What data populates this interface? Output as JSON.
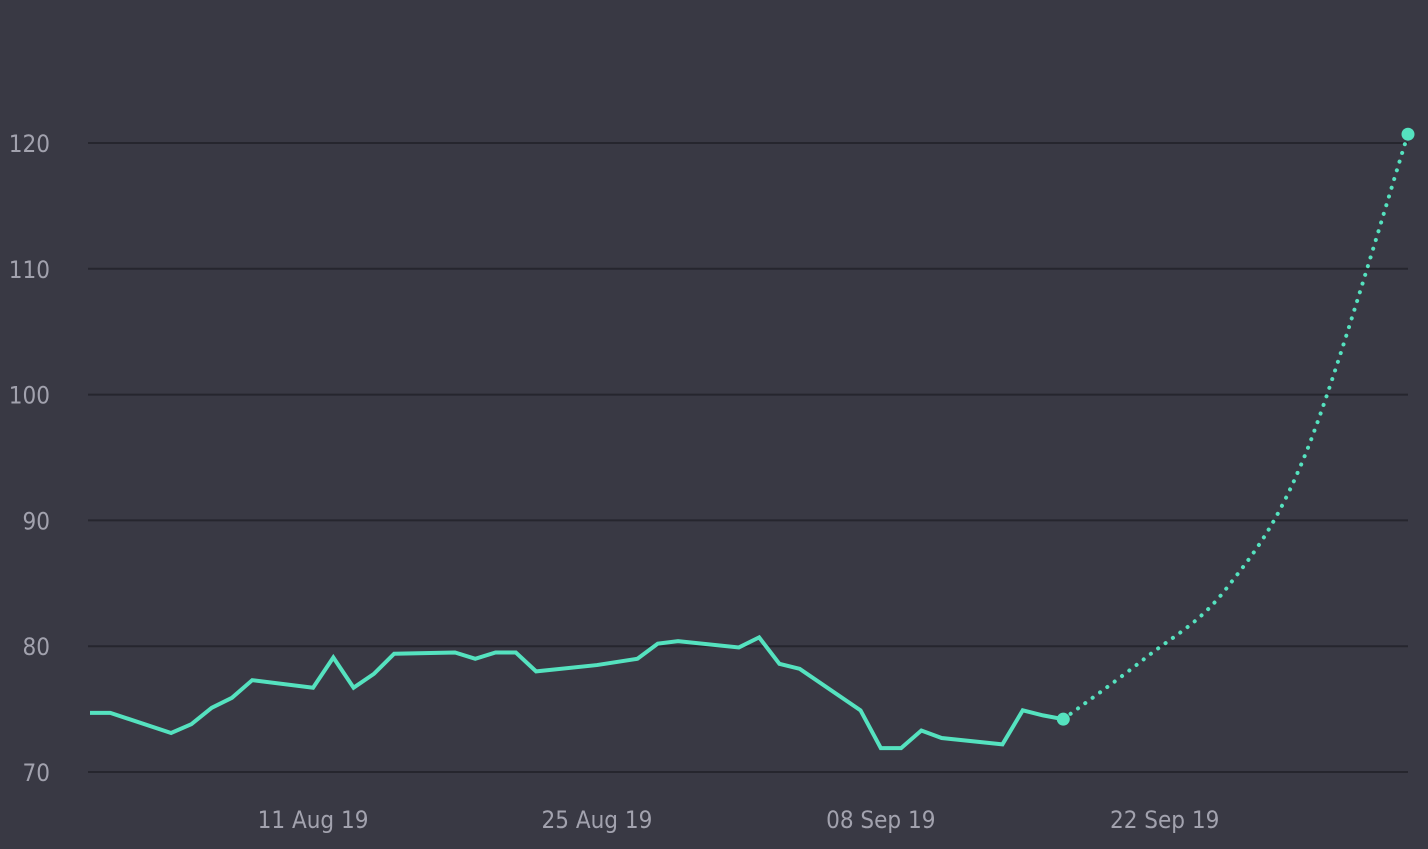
{
  "chart_data": {
    "type": "line",
    "title": "",
    "xlabel": "",
    "ylabel": "",
    "colors": {
      "background": "#393944",
      "grid": "#26262e",
      "line": "#55e2bf",
      "tick_text": "#a2a2ae"
    },
    "grid": true,
    "ylim": [
      70,
      120
    ],
    "yticks": [
      70,
      80,
      90,
      100,
      110,
      120
    ],
    "ytick_labels": [
      "70",
      "80",
      "90",
      "100",
      "110",
      "120"
    ],
    "xlim": [
      "2019-07-31",
      "2019-10-04"
    ],
    "xticks": [
      "2019-08-11",
      "2019-08-25",
      "2019-09-08",
      "2019-09-22"
    ],
    "xtick_labels": [
      "11 Aug 19",
      "25 Aug 19",
      "08 Sep 19",
      "22 Sep 19"
    ],
    "series": [
      {
        "style": "solid",
        "points": [
          {
            "x": "2019-07-31",
            "y": 74.7
          },
          {
            "x": "2019-08-01",
            "y": 74.7
          },
          {
            "x": "2019-08-04",
            "y": 73.1
          },
          {
            "x": "2019-08-05",
            "y": 73.8
          },
          {
            "x": "2019-08-06",
            "y": 75.1
          },
          {
            "x": "2019-08-07",
            "y": 75.9
          },
          {
            "x": "2019-08-08",
            "y": 77.3
          },
          {
            "x": "2019-08-11",
            "y": 76.7
          },
          {
            "x": "2019-08-12",
            "y": 79.1
          },
          {
            "x": "2019-08-13",
            "y": 76.7
          },
          {
            "x": "2019-08-14",
            "y": 77.8
          },
          {
            "x": "2019-08-15",
            "y": 79.4
          },
          {
            "x": "2019-08-18",
            "y": 79.5
          },
          {
            "x": "2019-08-19",
            "y": 79.0
          },
          {
            "x": "2019-08-20",
            "y": 79.5
          },
          {
            "x": "2019-08-21",
            "y": 79.5
          },
          {
            "x": "2019-08-22",
            "y": 78.0
          },
          {
            "x": "2019-08-25",
            "y": 78.5
          },
          {
            "x": "2019-08-27",
            "y": 79.0
          },
          {
            "x": "2019-08-28",
            "y": 80.2
          },
          {
            "x": "2019-08-29",
            "y": 80.4
          },
          {
            "x": "2019-09-01",
            "y": 79.9
          },
          {
            "x": "2019-09-02",
            "y": 80.7
          },
          {
            "x": "2019-09-03",
            "y": 78.6
          },
          {
            "x": "2019-09-04",
            "y": 78.2
          },
          {
            "x": "2019-09-07",
            "y": 74.9
          },
          {
            "x": "2019-09-08",
            "y": 71.9
          },
          {
            "x": "2019-09-09",
            "y": 71.9
          },
          {
            "x": "2019-09-10",
            "y": 73.3
          },
          {
            "x": "2019-09-11",
            "y": 72.7
          },
          {
            "x": "2019-09-14",
            "y": 72.2
          },
          {
            "x": "2019-09-15",
            "y": 74.9
          },
          {
            "x": "2019-09-16",
            "y": 74.5
          },
          {
            "x": "2019-09-17",
            "y": 74.2
          }
        ]
      },
      {
        "style": "dotted",
        "points": [
          {
            "x": "2019-09-17",
            "y": 74.2
          },
          {
            "x": "2019-09-21",
            "y": 79.0
          },
          {
            "x": "2019-09-25",
            "y": 84.5
          },
          {
            "x": "2019-09-29",
            "y": 95.5
          },
          {
            "x": "2019-10-04",
            "y": 120.7
          }
        ],
        "highlighted_points": [
          {
            "x": "2019-09-17",
            "y": 74.2
          },
          {
            "x": "2019-10-04",
            "y": 120.7
          }
        ]
      }
    ]
  }
}
